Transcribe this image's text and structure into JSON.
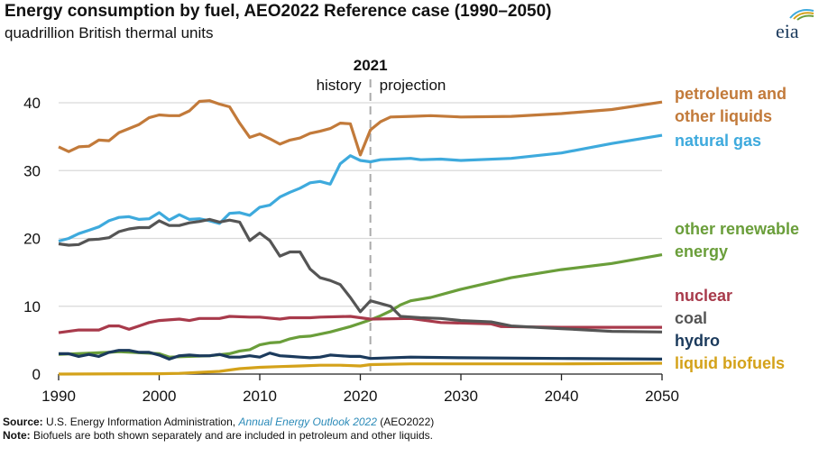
{
  "chart_data": {
    "type": "line",
    "title": "Energy consumption by fuel, AEO2022 Reference case (1990–2050)",
    "subtitle": "quadrillion British thermal units",
    "xlim": [
      1990,
      2050
    ],
    "ylim": [
      0,
      40
    ],
    "xticks": [
      1990,
      2000,
      2010,
      2020,
      2030,
      2040,
      2050
    ],
    "yticks": [
      0,
      10,
      20,
      30,
      40
    ],
    "grid": "horizontal",
    "divider": {
      "year": 2021,
      "label": "2021",
      "left_label": "history",
      "right_label": "projection"
    },
    "legend_placement": "right (inline labels)",
    "series": [
      {
        "name": "petroleum and other liquids",
        "label_lines": [
          "petroleum and",
          "other liquids"
        ],
        "color": "#c27a3a",
        "x": [
          1990,
          1991,
          1992,
          1993,
          1994,
          1995,
          1996,
          1997,
          1998,
          1999,
          2000,
          2001,
          2002,
          2003,
          2004,
          2005,
          2006,
          2007,
          2008,
          2009,
          2010,
          2011,
          2012,
          2013,
          2014,
          2015,
          2016,
          2017,
          2018,
          2019,
          2020,
          2021,
          2022,
          2023,
          2025,
          2027,
          2030,
          2035,
          2040,
          2045,
          2050
        ],
        "y": [
          33.5,
          32.8,
          33.5,
          33.6,
          34.5,
          34.4,
          35.6,
          36.2,
          36.8,
          37.8,
          38.2,
          38.1,
          38.1,
          38.8,
          40.2,
          40.3,
          39.8,
          39.4,
          37.0,
          34.9,
          35.4,
          34.7,
          33.9,
          34.5,
          34.8,
          35.5,
          35.8,
          36.2,
          37.0,
          36.9,
          32.3,
          36.0,
          37.2,
          37.9,
          38.0,
          38.1,
          37.9,
          38.0,
          38.4,
          39.0,
          40.1
        ]
      },
      {
        "name": "natural gas",
        "label_lines": [
          "natural gas"
        ],
        "color": "#3eaadd",
        "x": [
          1990,
          1991,
          1992,
          1993,
          1994,
          1995,
          1996,
          1997,
          1998,
          1999,
          2000,
          2001,
          2002,
          2003,
          2004,
          2005,
          2006,
          2007,
          2008,
          2009,
          2010,
          2011,
          2012,
          2013,
          2014,
          2015,
          2016,
          2017,
          2018,
          2019,
          2020,
          2021,
          2022,
          2025,
          2026,
          2028,
          2030,
          2035,
          2040,
          2045,
          2050
        ],
        "y": [
          19.6,
          20.0,
          20.7,
          21.2,
          21.7,
          22.6,
          23.1,
          23.2,
          22.8,
          22.9,
          23.8,
          22.7,
          23.5,
          22.8,
          22.9,
          22.6,
          22.2,
          23.7,
          23.8,
          23.4,
          24.6,
          24.9,
          26.1,
          26.8,
          27.4,
          28.2,
          28.4,
          28.0,
          31.0,
          32.2,
          31.5,
          31.3,
          31.6,
          31.8,
          31.6,
          31.7,
          31.5,
          31.8,
          32.6,
          34.0,
          35.2
        ]
      },
      {
        "name": "other renewable energy",
        "label_lines": [
          "other renewable",
          "energy"
        ],
        "color": "#6a9e3a",
        "x": [
          1990,
          1995,
          1996,
          2000,
          2001,
          2005,
          2007,
          2008,
          2009,
          2010,
          2011,
          2012,
          2013,
          2014,
          2015,
          2017,
          2018,
          2019,
          2020,
          2021,
          2022,
          2023,
          2024,
          2025,
          2027,
          2030,
          2035,
          2040,
          2045,
          2050
        ],
        "y": [
          2.9,
          3.2,
          3.3,
          3.0,
          2.5,
          2.7,
          3.0,
          3.4,
          3.6,
          4.3,
          4.6,
          4.7,
          5.2,
          5.5,
          5.6,
          6.2,
          6.6,
          7.0,
          7.5,
          8.0,
          8.6,
          9.3,
          10.2,
          10.8,
          11.3,
          12.5,
          14.2,
          15.4,
          16.3,
          17.6
        ]
      },
      {
        "name": "nuclear",
        "label_lines": [
          "nuclear"
        ],
        "color": "#a83a4b",
        "x": [
          1990,
          1992,
          1994,
          1995,
          1996,
          1997,
          1998,
          1999,
          2000,
          2002,
          2003,
          2004,
          2006,
          2007,
          2009,
          2010,
          2012,
          2013,
          2015,
          2016,
          2019,
          2020,
          2021,
          2025,
          2028,
          2033,
          2034,
          2040,
          2050
        ],
        "y": [
          6.1,
          6.5,
          6.5,
          7.1,
          7.1,
          6.6,
          7.1,
          7.6,
          7.9,
          8.1,
          7.9,
          8.2,
          8.2,
          8.5,
          8.4,
          8.4,
          8.1,
          8.3,
          8.3,
          8.4,
          8.5,
          8.3,
          8.1,
          8.2,
          7.6,
          7.4,
          7.0,
          6.9,
          6.9
        ]
      },
      {
        "name": "coal",
        "label_lines": [
          "coal"
        ],
        "color": "#555555",
        "x": [
          1990,
          1991,
          1992,
          1993,
          1994,
          1995,
          1996,
          1997,
          1998,
          1999,
          2000,
          2001,
          2002,
          2003,
          2004,
          2005,
          2006,
          2007,
          2008,
          2009,
          2010,
          2011,
          2012,
          2013,
          2014,
          2015,
          2016,
          2017,
          2018,
          2019,
          2020,
          2021,
          2022,
          2023,
          2024,
          2026,
          2028,
          2030,
          2033,
          2035,
          2040,
          2045,
          2050
        ],
        "y": [
          19.2,
          19.0,
          19.1,
          19.8,
          19.9,
          20.1,
          21.0,
          21.4,
          21.6,
          21.6,
          22.6,
          21.9,
          21.9,
          22.3,
          22.5,
          22.8,
          22.4,
          22.7,
          22.4,
          19.7,
          20.8,
          19.7,
          17.4,
          18.0,
          18.0,
          15.5,
          14.2,
          13.8,
          13.2,
          11.3,
          9.2,
          10.8,
          10.4,
          10.0,
          8.5,
          8.3,
          8.2,
          7.9,
          7.7,
          7.1,
          6.7,
          6.3,
          6.2
        ]
      },
      {
        "name": "hydro",
        "label_lines": [
          "hydro"
        ],
        "color": "#1b3a5c",
        "x": [
          1990,
          1991,
          1992,
          1993,
          1994,
          1995,
          1996,
          1997,
          1998,
          1999,
          2000,
          2001,
          2002,
          2003,
          2004,
          2005,
          2006,
          2007,
          2008,
          2009,
          2010,
          2011,
          2012,
          2013,
          2014,
          2015,
          2016,
          2017,
          2018,
          2019,
          2020,
          2021,
          2025,
          2030,
          2040,
          2050
        ],
        "y": [
          3.0,
          3.0,
          2.6,
          2.9,
          2.6,
          3.2,
          3.5,
          3.5,
          3.2,
          3.2,
          2.8,
          2.2,
          2.7,
          2.8,
          2.7,
          2.7,
          2.9,
          2.5,
          2.5,
          2.7,
          2.5,
          3.1,
          2.7,
          2.6,
          2.5,
          2.4,
          2.5,
          2.8,
          2.7,
          2.6,
          2.6,
          2.3,
          2.5,
          2.4,
          2.3,
          2.2
        ]
      },
      {
        "name": "liquid biofuels",
        "label_lines": [
          "liquid biofuels"
        ],
        "color": "#d4a21a",
        "x": [
          1990,
          2000,
          2002,
          2004,
          2006,
          2007,
          2008,
          2010,
          2012,
          2014,
          2016,
          2018,
          2020,
          2021,
          2025,
          2030,
          2040,
          2050
        ],
        "y": [
          0,
          0.05,
          0.1,
          0.25,
          0.4,
          0.6,
          0.8,
          1.0,
          1.1,
          1.2,
          1.3,
          1.3,
          1.2,
          1.4,
          1.5,
          1.5,
          1.5,
          1.6
        ]
      }
    ]
  },
  "footer": {
    "source_label": "Source:",
    "source_text": " U.S. Energy Information Administration, ",
    "source_link": "Annual Energy Outlook 2022",
    "source_tail": " (AEO2022)",
    "note_label": "Note:",
    "note_text": " Biofuels are both shown separately and are included in petroleum and other liquids."
  },
  "logo": {
    "text": "eia"
  }
}
